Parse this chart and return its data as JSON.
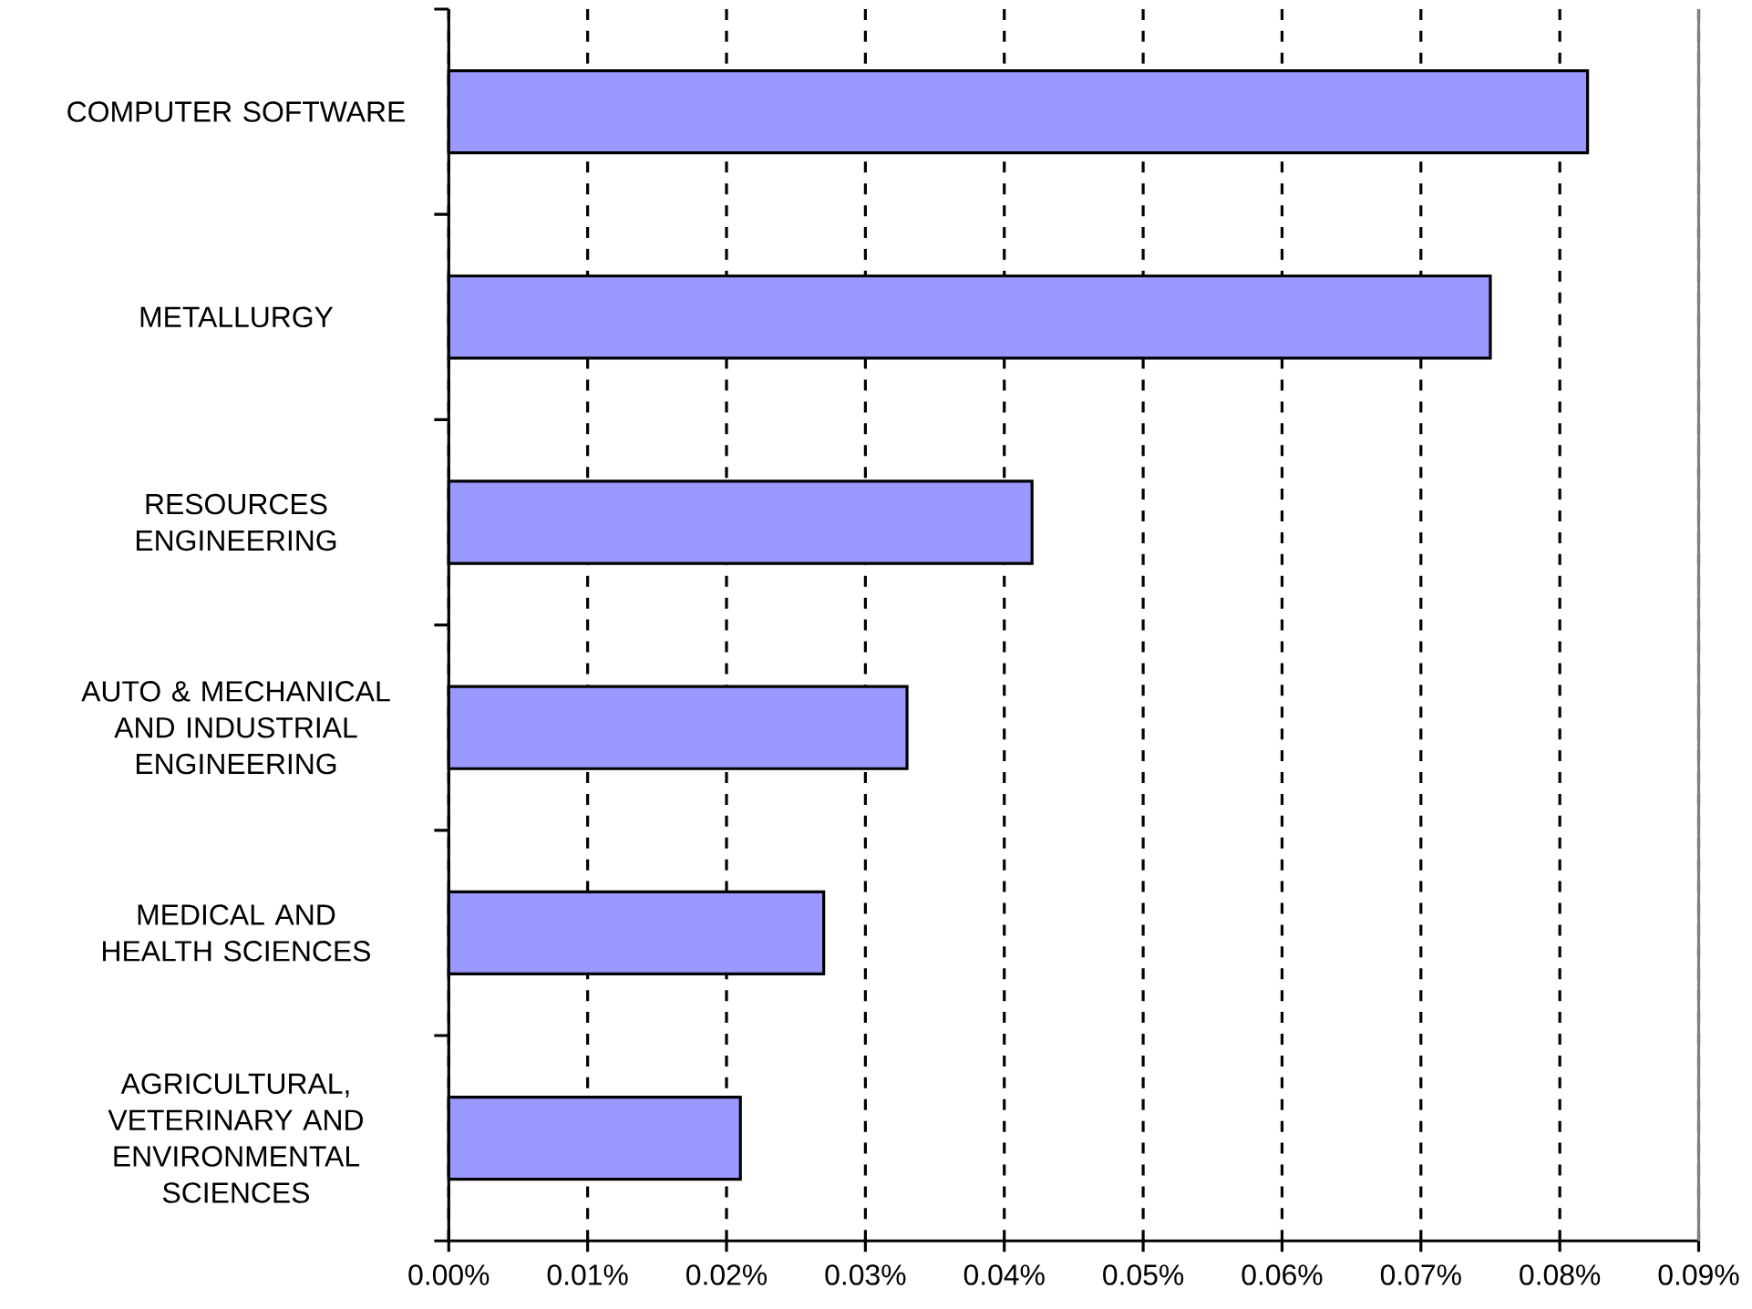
{
  "chart_data": {
    "type": "bar",
    "orientation": "horizontal",
    "categories": [
      "COMPUTER SOFTWARE",
      "METALLURGY",
      "RESOURCES ENGINEERING",
      "AUTO & MECHANICAL AND INDUSTRIAL ENGINEERING",
      "MEDICAL AND HEALTH SCIENCES",
      "AGRICULTURAL, VETERINARY AND ENVIRONMENTAL SCIENCES"
    ],
    "values": [
      0.082,
      0.075,
      0.042,
      0.033,
      0.027,
      0.021
    ],
    "color": "#9999ff",
    "xlim": [
      0,
      0.09
    ],
    "xticks": [
      {
        "value": 0,
        "label": "0.00%"
      },
      {
        "value": 0.01,
        "label": "0.01%"
      },
      {
        "value": 0.02,
        "label": "0.02%"
      },
      {
        "value": 0.03,
        "label": "0.03%"
      },
      {
        "value": 0.04,
        "label": "0.04%"
      },
      {
        "value": 0.05,
        "label": "0.05%"
      },
      {
        "value": 0.06,
        "label": "0.06%"
      },
      {
        "value": 0.07,
        "label": "0.07%"
      },
      {
        "value": 0.08,
        "label": "0.08%"
      },
      {
        "value": 0.09,
        "label": "0.09%"
      }
    ],
    "grid": "x"
  }
}
